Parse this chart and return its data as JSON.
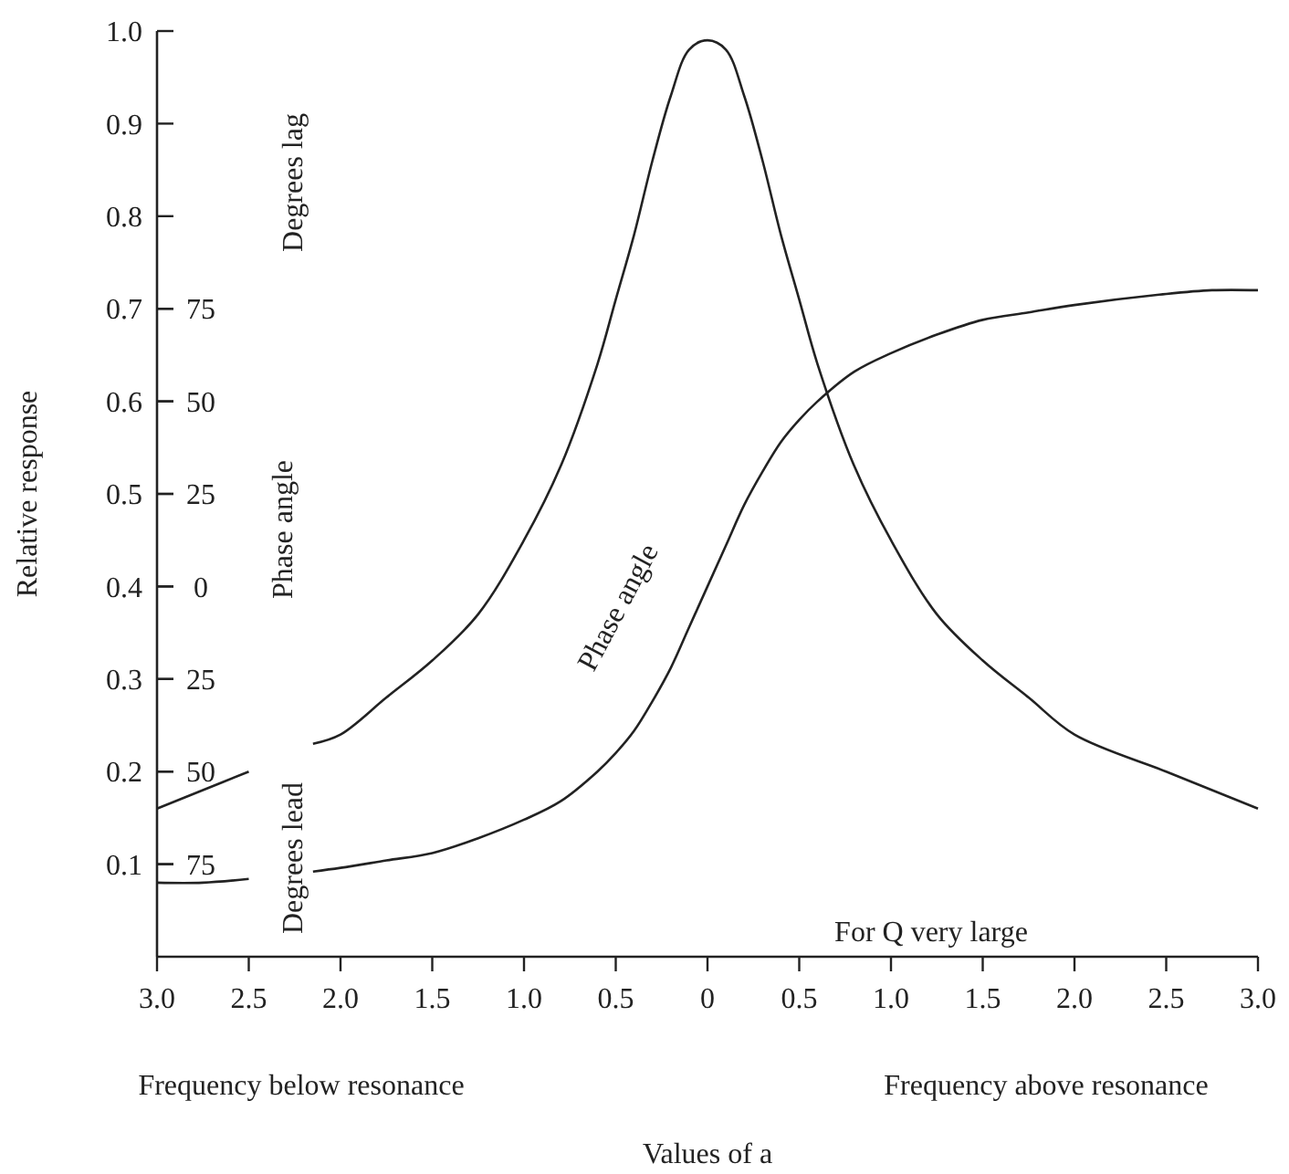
{
  "chart_data": {
    "type": "line",
    "xlabel": "Values of a",
    "ylabel": "Relative response",
    "y2label": "Phase angle",
    "annotations": [
      "Degrees lag",
      "Degrees lead",
      "For Q very large",
      "Frequency below resonance",
      "Frequency above resonance"
    ],
    "x": [
      -3,
      -2.75,
      -2.5,
      -2.3,
      -2.15,
      -2,
      -1.75,
      -1.5,
      -1.25,
      -1,
      -0.8,
      -0.6,
      -0.5,
      -0.4,
      -0.3,
      -0.2,
      -0.1,
      0,
      0.1,
      0.2,
      0.3,
      0.4,
      0.5,
      0.6,
      0.8,
      1,
      1.25,
      1.5,
      1.75,
      2,
      2.5,
      2.75,
      3
    ],
    "series": [
      {
        "color": "#222222",
        "values": [
          0.16,
          0.18,
          0.2,
          null,
          0.23,
          0.24,
          0.28,
          0.32,
          0.37,
          0.45,
          0.53,
          0.64,
          0.71,
          0.78,
          0.86,
          0.93,
          0.98,
          0.99,
          0.98,
          0.93,
          0.86,
          0.78,
          0.71,
          0.64,
          0.53,
          0.45,
          0.37,
          0.32,
          0.28,
          0.24,
          0.2,
          0.18,
          0.16
        ]
      },
      {
        "name": "Phase angle",
        "axis": "y2",
        "color": "#222222",
        "values": [
          -80,
          -80,
          -79,
          null,
          -77,
          -76,
          -74,
          -72,
          -68,
          -63,
          -58,
          -50,
          -45,
          -39,
          -31,
          -22,
          -11,
          0,
          11,
          22,
          31,
          39,
          45,
          50,
          58,
          63,
          68,
          72,
          74,
          76,
          79,
          80,
          80
        ]
      }
    ],
    "xlim": [
      -3,
      3
    ],
    "xticks": [
      {
        "value": -3,
        "label": "3.0"
      },
      {
        "value": -2.5,
        "label": "2.5"
      },
      {
        "value": -2,
        "label": "2.0"
      },
      {
        "value": -1.5,
        "label": "1.5"
      },
      {
        "value": -1,
        "label": "1.0"
      },
      {
        "value": -0.5,
        "label": "0.5"
      },
      0,
      {
        "value": 0.5,
        "label": "0.5"
      },
      {
        "value": 1,
        "label": "1.0"
      },
      {
        "value": 1.5,
        "label": "1.5"
      },
      {
        "value": 2,
        "label": "2.0"
      },
      {
        "value": 2.5,
        "label": "2.5"
      },
      {
        "value": 3,
        "label": "3.0"
      }
    ],
    "ylim": [
      0,
      1
    ],
    "yticks": [
      {
        "value": 0.1,
        "label": "0.1"
      },
      {
        "value": 0.2,
        "label": "0.2"
      },
      {
        "value": 0.3,
        "label": "0.3"
      },
      {
        "value": 0.4,
        "label": "0.4"
      },
      {
        "value": 0.5,
        "label": "0.5"
      },
      {
        "value": 0.6,
        "label": "0.6"
      },
      {
        "value": 0.7,
        "label": "0.7"
      },
      {
        "value": 0.8,
        "label": "0.8"
      },
      {
        "value": 0.9,
        "label": "0.9"
      },
      {
        "value": 1,
        "label": "1.0"
      }
    ],
    "y2lim": [
      -100,
      150
    ],
    "y2ticks": [
      {
        "value": -75,
        "label": "75"
      },
      {
        "value": -50,
        "label": "50"
      },
      {
        "value": -25,
        "label": "25"
      },
      0,
      25,
      50,
      75
    ],
    "grid": false,
    "marker": "none",
    "line_style": "solid"
  }
}
